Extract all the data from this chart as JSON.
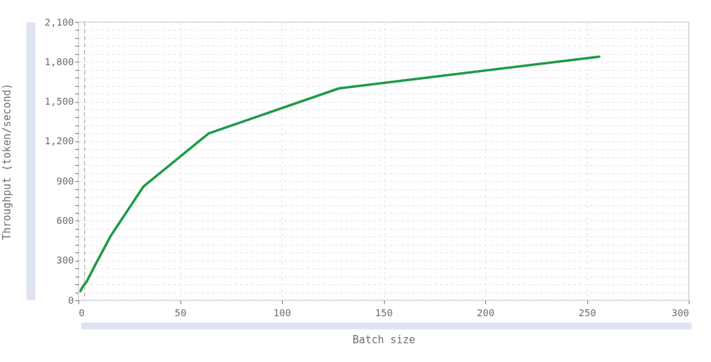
{
  "chart_data": {
    "type": "line",
    "xlabel": "Batch size",
    "ylabel": "Throughput (token/second)",
    "x": [
      1,
      2,
      4,
      8,
      16,
      32,
      64,
      128,
      256
    ],
    "series": [
      {
        "color": "#1e9a48",
        "values": [
          70,
          100,
          140,
          260,
          490,
          860,
          1260,
          1600,
          1840
        ]
      }
    ],
    "xlim": [
      0,
      300
    ],
    "xticks": [
      0,
      50,
      100,
      150,
      200,
      250,
      300
    ],
    "ylim": [
      0,
      2100
    ],
    "yticks": [
      0,
      {
        "value": 60,
        "label": null
      },
      {
        "value": 120,
        "label": null
      },
      {
        "value": 180,
        "label": null
      },
      {
        "value": 240,
        "label": null
      },
      300,
      {
        "value": 360,
        "label": null
      },
      {
        "value": 420,
        "label": null
      },
      {
        "value": 480,
        "label": null
      },
      {
        "value": 540,
        "label": null
      },
      600,
      {
        "value": 660,
        "label": null
      },
      {
        "value": 720,
        "label": null
      },
      {
        "value": 780,
        "label": null
      },
      {
        "value": 840,
        "label": null
      },
      900,
      {
        "value": 960,
        "label": null
      },
      {
        "value": 1020,
        "label": null
      },
      {
        "value": 1080,
        "label": null
      },
      {
        "value": 1140,
        "label": null
      },
      {
        "value": 1200,
        "label": "1,200"
      },
      {
        "value": 1260,
        "label": null
      },
      {
        "value": 1320,
        "label": null
      },
      {
        "value": 1380,
        "label": null
      },
      {
        "value": 1440,
        "label": null
      },
      {
        "value": 1500,
        "label": "1,500"
      },
      {
        "value": 1560,
        "label": null
      },
      {
        "value": 1620,
        "label": null
      },
      {
        "value": 1680,
        "label": null
      },
      {
        "value": 1740,
        "label": null
      },
      {
        "value": 1800,
        "label": "1,800"
      },
      {
        "value": 1860,
        "label": null
      },
      {
        "value": 1920,
        "label": null
      },
      {
        "value": 1980,
        "label": null
      },
      {
        "value": 2040,
        "label": null
      },
      {
        "value": 2100,
        "label": "2,100"
      }
    ],
    "grid": true,
    "ref_lines": [
      {
        "axis": "x",
        "value": 3,
        "color": "#999999",
        "line_style": "dashed"
      }
    ]
  }
}
